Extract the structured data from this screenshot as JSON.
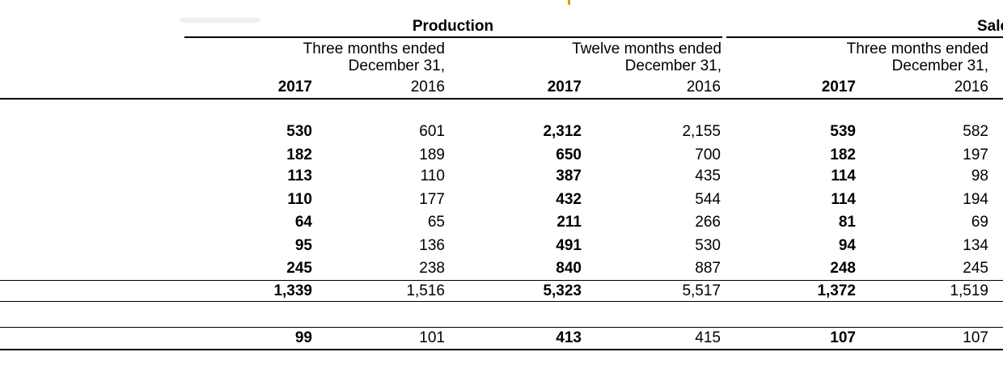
{
  "headers": {
    "production": "Production",
    "sales_partial": "Sale",
    "groups": [
      {
        "line1": "Three months ended",
        "line2": "December 31,",
        "years": [
          "2017",
          "2016"
        ]
      },
      {
        "line1": "Twelve months ended",
        "line2": "December 31,",
        "years": [
          "2017",
          "2016"
        ]
      },
      {
        "line1": "Three months ended",
        "line2": "December 31,",
        "years": [
          "2017",
          "2016"
        ]
      }
    ]
  },
  "rows": [
    [
      "530",
      "601",
      "2,312",
      "2,155",
      "539",
      "582"
    ],
    [
      "182",
      "189",
      "650",
      "700",
      "182",
      "197"
    ],
    [
      "113",
      "110",
      "387",
      "435",
      "114",
      "98"
    ],
    [
      "110",
      "177",
      "432",
      "544",
      "114",
      "194"
    ],
    [
      "64",
      "65",
      "211",
      "266",
      "81",
      "69"
    ],
    [
      "95",
      "136",
      "491",
      "530",
      "94",
      "134"
    ],
    [
      "245",
      "238",
      "840",
      "887",
      "248",
      "245"
    ]
  ],
  "total": [
    "1,339",
    "1,516",
    "5,323",
    "5,517",
    "1,372",
    "1,519"
  ],
  "extra": [
    "99",
    "101",
    "413",
    "415",
    "107",
    "107"
  ]
}
